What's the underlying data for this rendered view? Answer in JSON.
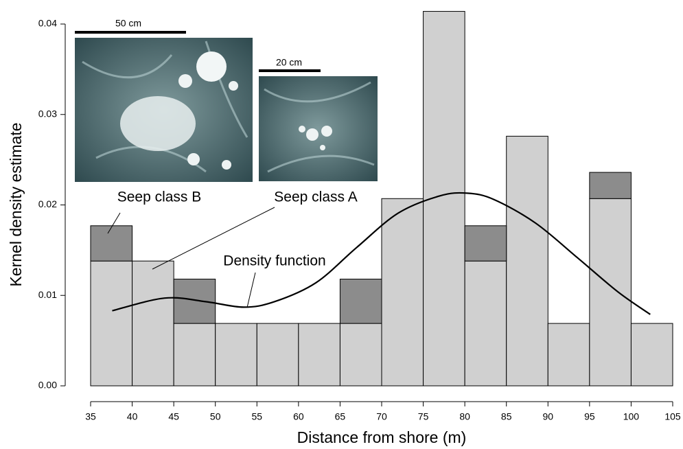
{
  "chart_data": {
    "type": "histogram",
    "x_label": "Distance from shore (m)",
    "y_label": "Kernel density estimate",
    "bins": [
      35,
      40,
      45,
      50,
      55,
      60,
      65,
      70,
      75,
      80,
      85,
      90,
      95,
      100,
      105
    ],
    "series": [
      {
        "name": "Seep class A",
        "color": "#d0d0d0",
        "values": [
          0.0138,
          0.0138,
          0.0069,
          0.0069,
          0.0069,
          0.0069,
          0.0069,
          0.0207,
          0.0414,
          0.0138,
          0.0276,
          0.0069,
          0.0207,
          0.0069
        ]
      },
      {
        "name": "Seep class B",
        "color": "#8c8c8c",
        "values": [
          0.0039,
          0,
          0.0049,
          0,
          0,
          0,
          0.0049,
          0,
          0,
          0.0039,
          0,
          0,
          0.0029,
          0
        ]
      }
    ],
    "density": {
      "name": "Density function",
      "color": "#000000",
      "x": [
        37.6,
        43.9,
        48.9,
        53.4,
        57.1,
        62.1,
        67.0,
        72.0,
        77.0,
        80.3,
        83.5,
        88.5,
        93.5,
        98.4,
        102.3
      ],
      "y": [
        0.0083,
        0.0097,
        0.0093,
        0.0087,
        0.0093,
        0.0114,
        0.0153,
        0.0191,
        0.021,
        0.0213,
        0.0206,
        0.018,
        0.0142,
        0.0104,
        0.0079
      ]
    },
    "xlim": [
      35,
      105
    ],
    "xticks": [
      35,
      40,
      45,
      50,
      55,
      60,
      65,
      70,
      75,
      80,
      85,
      90,
      95,
      100,
      105
    ],
    "ylim": [
      0,
      0.04
    ],
    "yticks": [
      {
        "value": 0,
        "label": "0.00"
      },
      0.01,
      0.02,
      0.03,
      0.04
    ],
    "annotations": [
      "50 cm",
      "20 cm"
    ]
  }
}
